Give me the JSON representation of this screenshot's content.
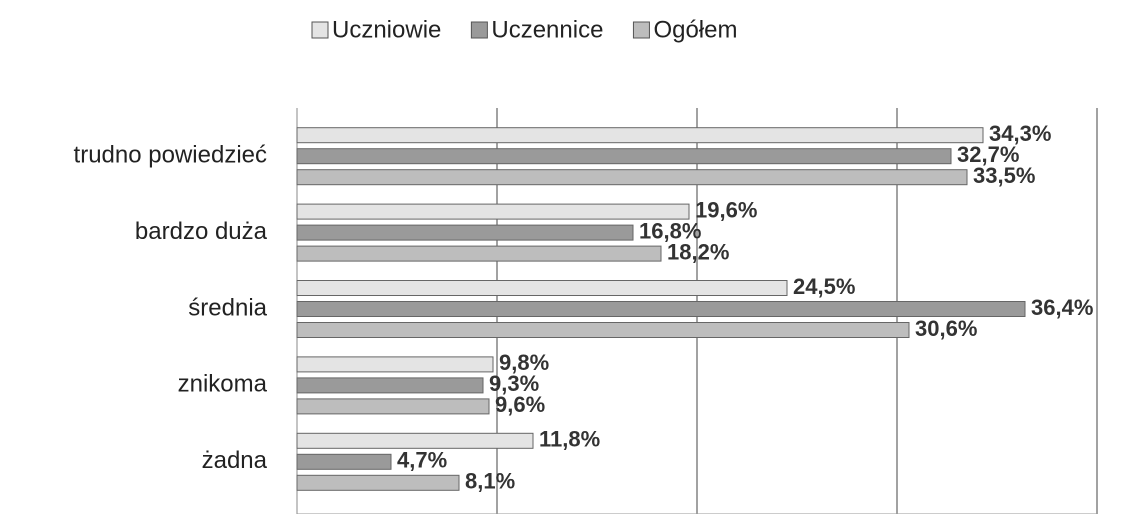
{
  "chart_data": {
    "type": "bar",
    "orientation": "horizontal",
    "categories": [
      "trudno powiedzieć",
      "bardzo duża",
      "średnia",
      "znikoma",
      "żadna"
    ],
    "series": [
      {
        "name": "Uczniowie",
        "color": "#e4e4e4",
        "values": [
          34.3,
          19.6,
          24.5,
          9.8,
          11.8
        ],
        "value_labels": [
          "34,3%",
          "19,6%",
          "24,5%",
          "9,8%",
          "11,8%"
        ]
      },
      {
        "name": "Uczennice",
        "color": "#9a9a9a",
        "values": [
          32.7,
          16.8,
          36.4,
          9.3,
          4.7
        ],
        "value_labels": [
          "32,7%",
          "16,8%",
          "36,4%",
          "9,3%",
          "4,7%"
        ]
      },
      {
        "name": "Ogółem",
        "color": "#bdbdbd",
        "values": [
          33.5,
          18.2,
          30.6,
          9.6,
          8.1
        ],
        "value_labels": [
          "33,5%",
          "18,2%",
          "30,6%",
          "9,6%",
          "8,1%"
        ]
      }
    ],
    "xlim": [
      0,
      40
    ],
    "xticks": [
      0,
      10,
      20,
      30,
      40
    ],
    "grid": true,
    "legend": "top"
  }
}
